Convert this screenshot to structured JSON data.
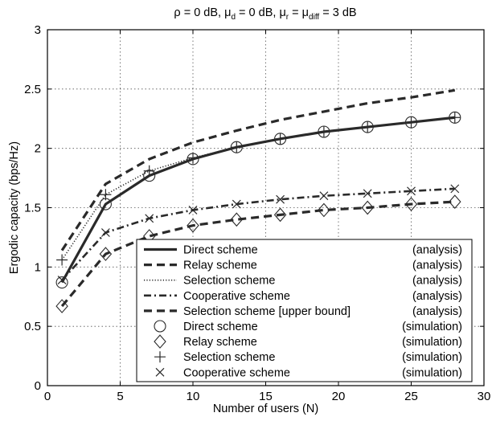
{
  "chart_data": {
    "type": "line",
    "title": "ρ = 0 dB, μd = 0 dB, μr = μdiff = 3 dB",
    "title_parts": {
      "rho": "ρ = 0 dB, ",
      "mu": "μ",
      "d_sub": "d",
      "mid": " = 0 dB, ",
      "r_sub": "r",
      "eq": " = ",
      "diff_sub": "diff",
      "end": " = 3 dB"
    },
    "xlabel": "Number of users (N)",
    "ylabel": "Ergodic capacity (bps/Hz)",
    "xlim": [
      0,
      30
    ],
    "ylim": [
      0,
      3
    ],
    "xticks": [
      0,
      5,
      10,
      15,
      20,
      25,
      30
    ],
    "yticks": [
      0,
      0.5,
      1,
      1.5,
      2,
      2.5,
      3
    ],
    "xtick_labels": [
      "0",
      "5",
      "10",
      "15",
      "20",
      "25",
      "30"
    ],
    "ytick_labels": [
      "0",
      "0.5",
      "1",
      "1.5",
      "2",
      "2.5",
      "3"
    ],
    "grid": true,
    "legend_position": "bottom-right",
    "x": [
      1,
      4,
      7,
      10,
      13,
      16,
      19,
      22,
      25,
      28
    ],
    "series": [
      {
        "name": "Direct scheme",
        "tag": "(analysis)",
        "style": "solid",
        "values": [
          0.87,
          1.53,
          1.77,
          1.91,
          2.01,
          2.08,
          2.14,
          2.18,
          2.22,
          2.26
        ]
      },
      {
        "name": "Relay scheme",
        "tag": "(analysis)",
        "style": "dashed",
        "values": [
          0.67,
          1.11,
          1.26,
          1.35,
          1.4,
          1.44,
          1.48,
          1.5,
          1.53,
          1.55
        ]
      },
      {
        "name": "Selection scheme",
        "tag": "(analysis)",
        "style": "dotted",
        "values": [
          1.06,
          1.61,
          1.81,
          1.92,
          2.01,
          2.08,
          2.14,
          2.18,
          2.22,
          2.26
        ]
      },
      {
        "name": "Cooperative scheme",
        "tag": "(analysis)",
        "style": "dashdot",
        "values": [
          0.89,
          1.29,
          1.41,
          1.48,
          1.53,
          1.57,
          1.6,
          1.62,
          1.64,
          1.66
        ]
      },
      {
        "name": "Selection scheme [upper bound]",
        "tag": "(analysis)",
        "style": "dashed",
        "values": [
          1.14,
          1.7,
          1.91,
          2.05,
          2.15,
          2.24,
          2.31,
          2.38,
          2.43,
          2.49
        ]
      },
      {
        "name": "Direct scheme",
        "tag": "(simulation)",
        "marker": "circle",
        "values": [
          0.87,
          1.53,
          1.77,
          1.91,
          2.01,
          2.08,
          2.14,
          2.18,
          2.22,
          2.26
        ]
      },
      {
        "name": "Relay scheme",
        "tag": "(simulation)",
        "marker": "diamond",
        "values": [
          0.67,
          1.11,
          1.26,
          1.35,
          1.4,
          1.44,
          1.48,
          1.5,
          1.53,
          1.55
        ]
      },
      {
        "name": "Selection scheme",
        "tag": "(simulation)",
        "marker": "plus",
        "values": [
          1.06,
          1.61,
          1.81,
          1.92,
          2.01,
          2.08,
          2.14,
          2.18,
          2.22,
          2.26
        ]
      },
      {
        "name": "Cooperative scheme",
        "tag": "(simulation)",
        "marker": "cross",
        "values": [
          0.89,
          1.29,
          1.41,
          1.48,
          1.53,
          1.57,
          1.6,
          1.62,
          1.64,
          1.66
        ]
      }
    ],
    "line_color": "#2a2a2a",
    "grid_color": "#555555"
  }
}
